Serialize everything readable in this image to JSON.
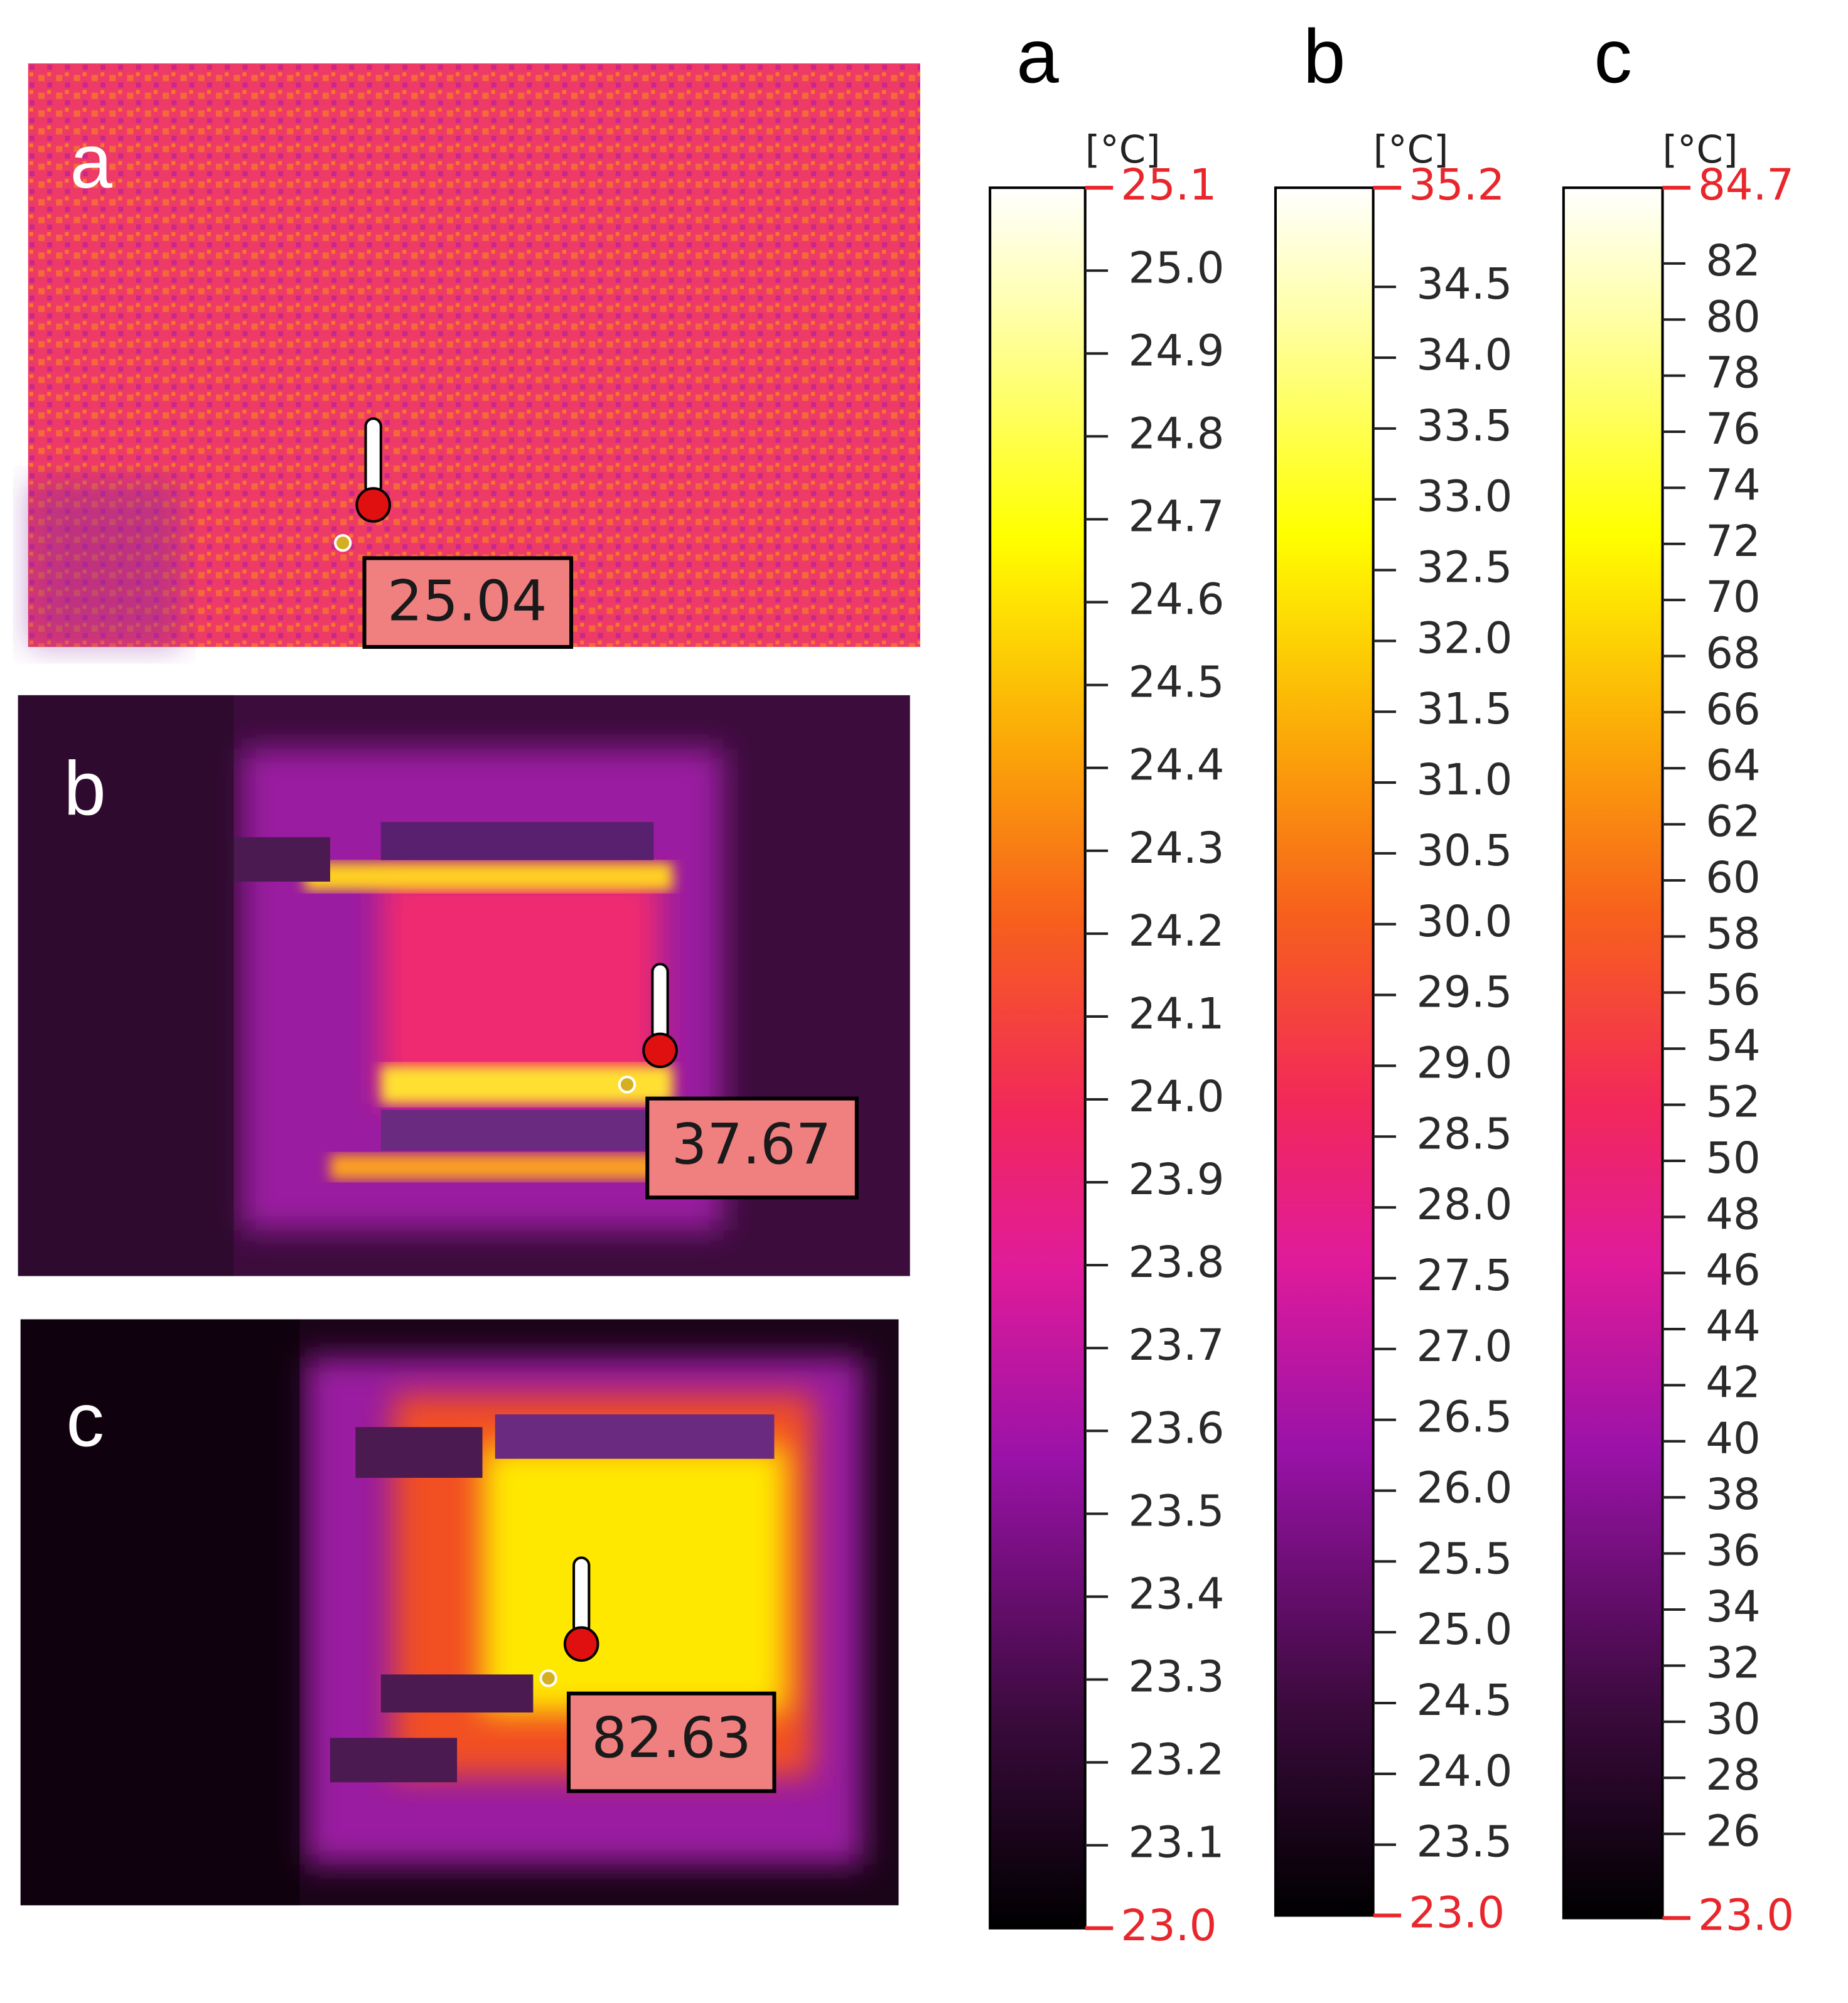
{
  "panels": [
    {
      "label": "a",
      "reading": 25.04
    },
    {
      "label": "b",
      "reading": 37.67
    },
    {
      "label": "c",
      "reading": 82.63
    }
  ],
  "colorbars": [
    {
      "label": "a",
      "unit": "[°C]",
      "max": 25.1,
      "min": {
        "value": 23,
        "label": "23.0"
      },
      "ticks": [
        23.1,
        23.2,
        23.3,
        23.4,
        23.5,
        23.6,
        23.7,
        23.8,
        23.9,
        {
          "value": 24,
          "label": "24.0"
        },
        24.1,
        24.2,
        24.3,
        24.4,
        24.5,
        24.6,
        24.7,
        24.8,
        24.9,
        {
          "value": 25,
          "label": "25.0"
        }
      ]
    },
    {
      "label": "b",
      "unit": "[°C]",
      "max": 35.2,
      "min": {
        "value": 23,
        "label": "23.0"
      },
      "ticks": [
        23.5,
        {
          "value": 24,
          "label": "24.0"
        },
        24.5,
        {
          "value": 25,
          "label": "25.0"
        },
        25.5,
        {
          "value": 26,
          "label": "26.0"
        },
        26.5,
        {
          "value": 27,
          "label": "27.0"
        },
        27.5,
        {
          "value": 28,
          "label": "28.0"
        },
        28.5,
        {
          "value": 29,
          "label": "29.0"
        },
        29.5,
        {
          "value": 30,
          "label": "30.0"
        },
        30.5,
        {
          "value": 31,
          "label": "31.0"
        },
        31.5,
        {
          "value": 32,
          "label": "32.0"
        },
        32.5,
        {
          "value": 33,
          "label": "33.0"
        },
        33.5,
        {
          "value": 34,
          "label": "34.0"
        },
        34.5
      ]
    },
    {
      "label": "c",
      "unit": "[°C]",
      "max": 84.7,
      "min": {
        "value": 23,
        "label": "23.0"
      },
      "ticks": [
        26,
        28,
        30,
        32,
        34,
        36,
        38,
        40,
        42,
        44,
        46,
        48,
        50,
        52,
        54,
        56,
        58,
        60,
        62,
        64,
        66,
        68,
        70,
        72,
        74,
        76,
        78,
        80,
        82
      ]
    }
  ]
}
